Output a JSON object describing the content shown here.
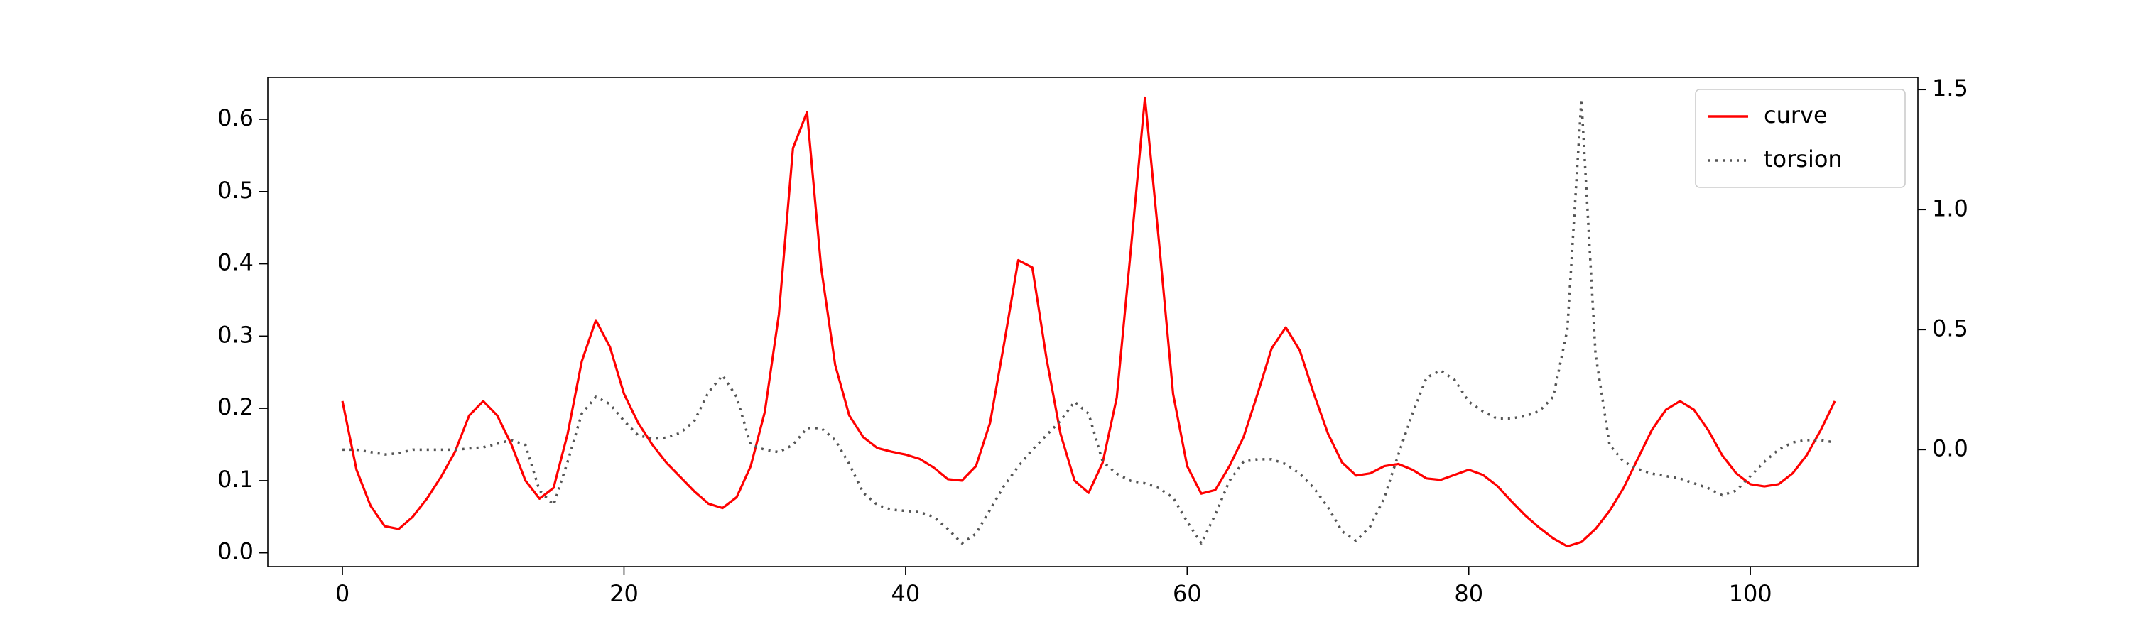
{
  "chart_data": {
    "type": "line",
    "x": [
      0,
      1,
      2,
      3,
      4,
      5,
      6,
      7,
      8,
      9,
      10,
      11,
      12,
      13,
      14,
      15,
      16,
      17,
      18,
      19,
      20,
      21,
      22,
      23,
      24,
      25,
      26,
      27,
      28,
      29,
      30,
      31,
      32,
      33,
      34,
      35,
      36,
      37,
      38,
      39,
      40,
      41,
      42,
      43,
      44,
      45,
      46,
      47,
      48,
      49,
      50,
      51,
      52,
      53,
      54,
      55,
      56,
      57,
      58,
      59,
      60,
      61,
      62,
      63,
      64,
      65,
      66,
      67,
      68,
      69,
      70,
      71,
      72,
      73,
      74,
      75,
      76,
      77,
      78,
      79,
      80,
      81,
      82,
      83,
      84,
      85,
      86,
      87,
      88,
      89,
      90,
      91,
      92,
      93,
      94,
      95,
      96,
      97,
      98,
      99,
      100,
      101,
      102,
      103,
      104,
      105,
      106
    ],
    "series": [
      {
        "name": "curve",
        "color": "#ff0000",
        "linestyle": "solid",
        "values": [
          0.21,
          0.115,
          0.065,
          0.037,
          0.033,
          0.05,
          0.075,
          0.105,
          0.14,
          0.19,
          0.21,
          0.19,
          0.15,
          0.1,
          0.075,
          0.09,
          0.165,
          0.265,
          0.322,
          0.285,
          0.22,
          0.18,
          0.15,
          0.125,
          0.105,
          0.085,
          0.068,
          0.062,
          0.077,
          0.12,
          0.195,
          0.33,
          0.56,
          0.61,
          0.395,
          0.26,
          0.19,
          0.16,
          0.145,
          0.14,
          0.136,
          0.13,
          0.118,
          0.102,
          0.1,
          0.12,
          0.18,
          0.29,
          0.405,
          0.395,
          0.27,
          0.165,
          0.1,
          0.083,
          0.125,
          0.215,
          0.42,
          0.63,
          0.43,
          0.22,
          0.12,
          0.082,
          0.087,
          0.12,
          0.16,
          0.22,
          0.283,
          0.312,
          0.28,
          0.22,
          0.165,
          0.125,
          0.107,
          0.11,
          0.12,
          0.123,
          0.115,
          0.103,
          0.101,
          0.108,
          0.115,
          0.108,
          0.093,
          0.072,
          0.052,
          0.035,
          0.02,
          0.009,
          0.015,
          0.033,
          0.058,
          0.09,
          0.13,
          0.17,
          0.198,
          0.21,
          0.198,
          0.17,
          0.135,
          0.11,
          0.095,
          0.092,
          0.095,
          0.11,
          0.135,
          0.17,
          0.21
        ]
      },
      {
        "name": "torsion",
        "color": "#555555",
        "linestyle": "dotted",
        "axis": "y2",
        "values": [
          0.0,
          0.0,
          -0.01,
          -0.02,
          -0.015,
          0.0,
          0.0,
          0.0,
          0.0,
          0.005,
          0.01,
          0.025,
          0.04,
          0.02,
          -0.17,
          -0.23,
          -0.05,
          0.15,
          0.22,
          0.19,
          0.12,
          0.06,
          0.045,
          0.05,
          0.07,
          0.12,
          0.24,
          0.31,
          0.22,
          0.02,
          0.0,
          -0.01,
          0.02,
          0.09,
          0.09,
          0.04,
          -0.06,
          -0.18,
          -0.23,
          -0.25,
          -0.255,
          -0.26,
          -0.28,
          -0.33,
          -0.39,
          -0.35,
          -0.25,
          -0.15,
          -0.07,
          0.0,
          0.06,
          0.12,
          0.2,
          0.15,
          -0.05,
          -0.1,
          -0.13,
          -0.14,
          -0.16,
          -0.2,
          -0.3,
          -0.39,
          -0.27,
          -0.13,
          -0.05,
          -0.04,
          -0.04,
          -0.06,
          -0.1,
          -0.16,
          -0.24,
          -0.34,
          -0.38,
          -0.32,
          -0.2,
          -0.02,
          0.15,
          0.3,
          0.33,
          0.29,
          0.2,
          0.16,
          0.13,
          0.13,
          0.14,
          0.16,
          0.22,
          0.5,
          1.46,
          0.4,
          0.02,
          -0.05,
          -0.08,
          -0.1,
          -0.11,
          -0.12,
          -0.14,
          -0.16,
          -0.19,
          -0.17,
          -0.11,
          -0.05,
          0.0,
          0.03,
          0.04,
          0.04,
          0.03
        ]
      }
    ],
    "xlim": [
      -5.3,
      111.9
    ],
    "xticks": [
      0,
      20,
      40,
      60,
      80,
      100
    ],
    "ylim": [
      -0.019,
      0.658
    ],
    "yticks": [
      {
        "value": 0,
        "label": "0.0"
      },
      0.1,
      0.2,
      0.3,
      0.4,
      0.5,
      0.6
    ],
    "y2lim": [
      -0.487,
      1.551
    ],
    "y2ticks": [
      {
        "value": 0,
        "label": "0.0"
      },
      0.5,
      {
        "value": 1,
        "label": "1.0"
      },
      1.5
    ],
    "legend": "upper right",
    "grid": false
  }
}
